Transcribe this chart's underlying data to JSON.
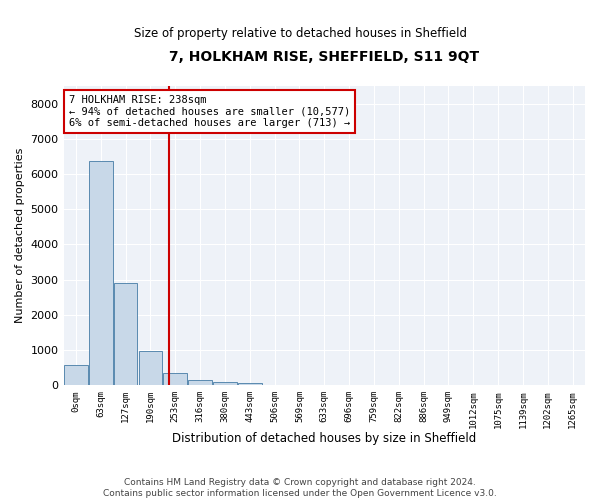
{
  "title": "7, HOLKHAM RISE, SHEFFIELD, S11 9QT",
  "subtitle": "Size of property relative to detached houses in Sheffield",
  "xlabel": "Distribution of detached houses by size in Sheffield",
  "ylabel": "Number of detached properties",
  "bar_color": "#c8d8e8",
  "bar_edge_color": "#5a8ab0",
  "categories": [
    "0sqm",
    "63sqm",
    "127sqm",
    "190sqm",
    "253sqm",
    "316sqm",
    "380sqm",
    "443sqm",
    "506sqm",
    "569sqm",
    "633sqm",
    "696sqm",
    "759sqm",
    "822sqm",
    "886sqm",
    "949sqm",
    "1012sqm",
    "1075sqm",
    "1139sqm",
    "1202sqm",
    "1265sqm"
  ],
  "values": [
    580,
    6380,
    2920,
    980,
    360,
    155,
    100,
    60,
    0,
    0,
    0,
    0,
    0,
    0,
    0,
    0,
    0,
    0,
    0,
    0,
    0
  ],
  "ylim": [
    0,
    8500
  ],
  "yticks": [
    0,
    1000,
    2000,
    3000,
    4000,
    5000,
    6000,
    7000,
    8000
  ],
  "vline_x": 3.75,
  "vline_color": "#cc0000",
  "annotation_line1": "7 HOLKHAM RISE: 238sqm",
  "annotation_line2": "← 94% of detached houses are smaller (10,577)",
  "annotation_line3": "6% of semi-detached houses are larger (713) →",
  "annotation_box_color": "#cc0000",
  "background_color": "#eef2f8",
  "footer": "Contains HM Land Registry data © Crown copyright and database right 2024.\nContains public sector information licensed under the Open Government Licence v3.0."
}
